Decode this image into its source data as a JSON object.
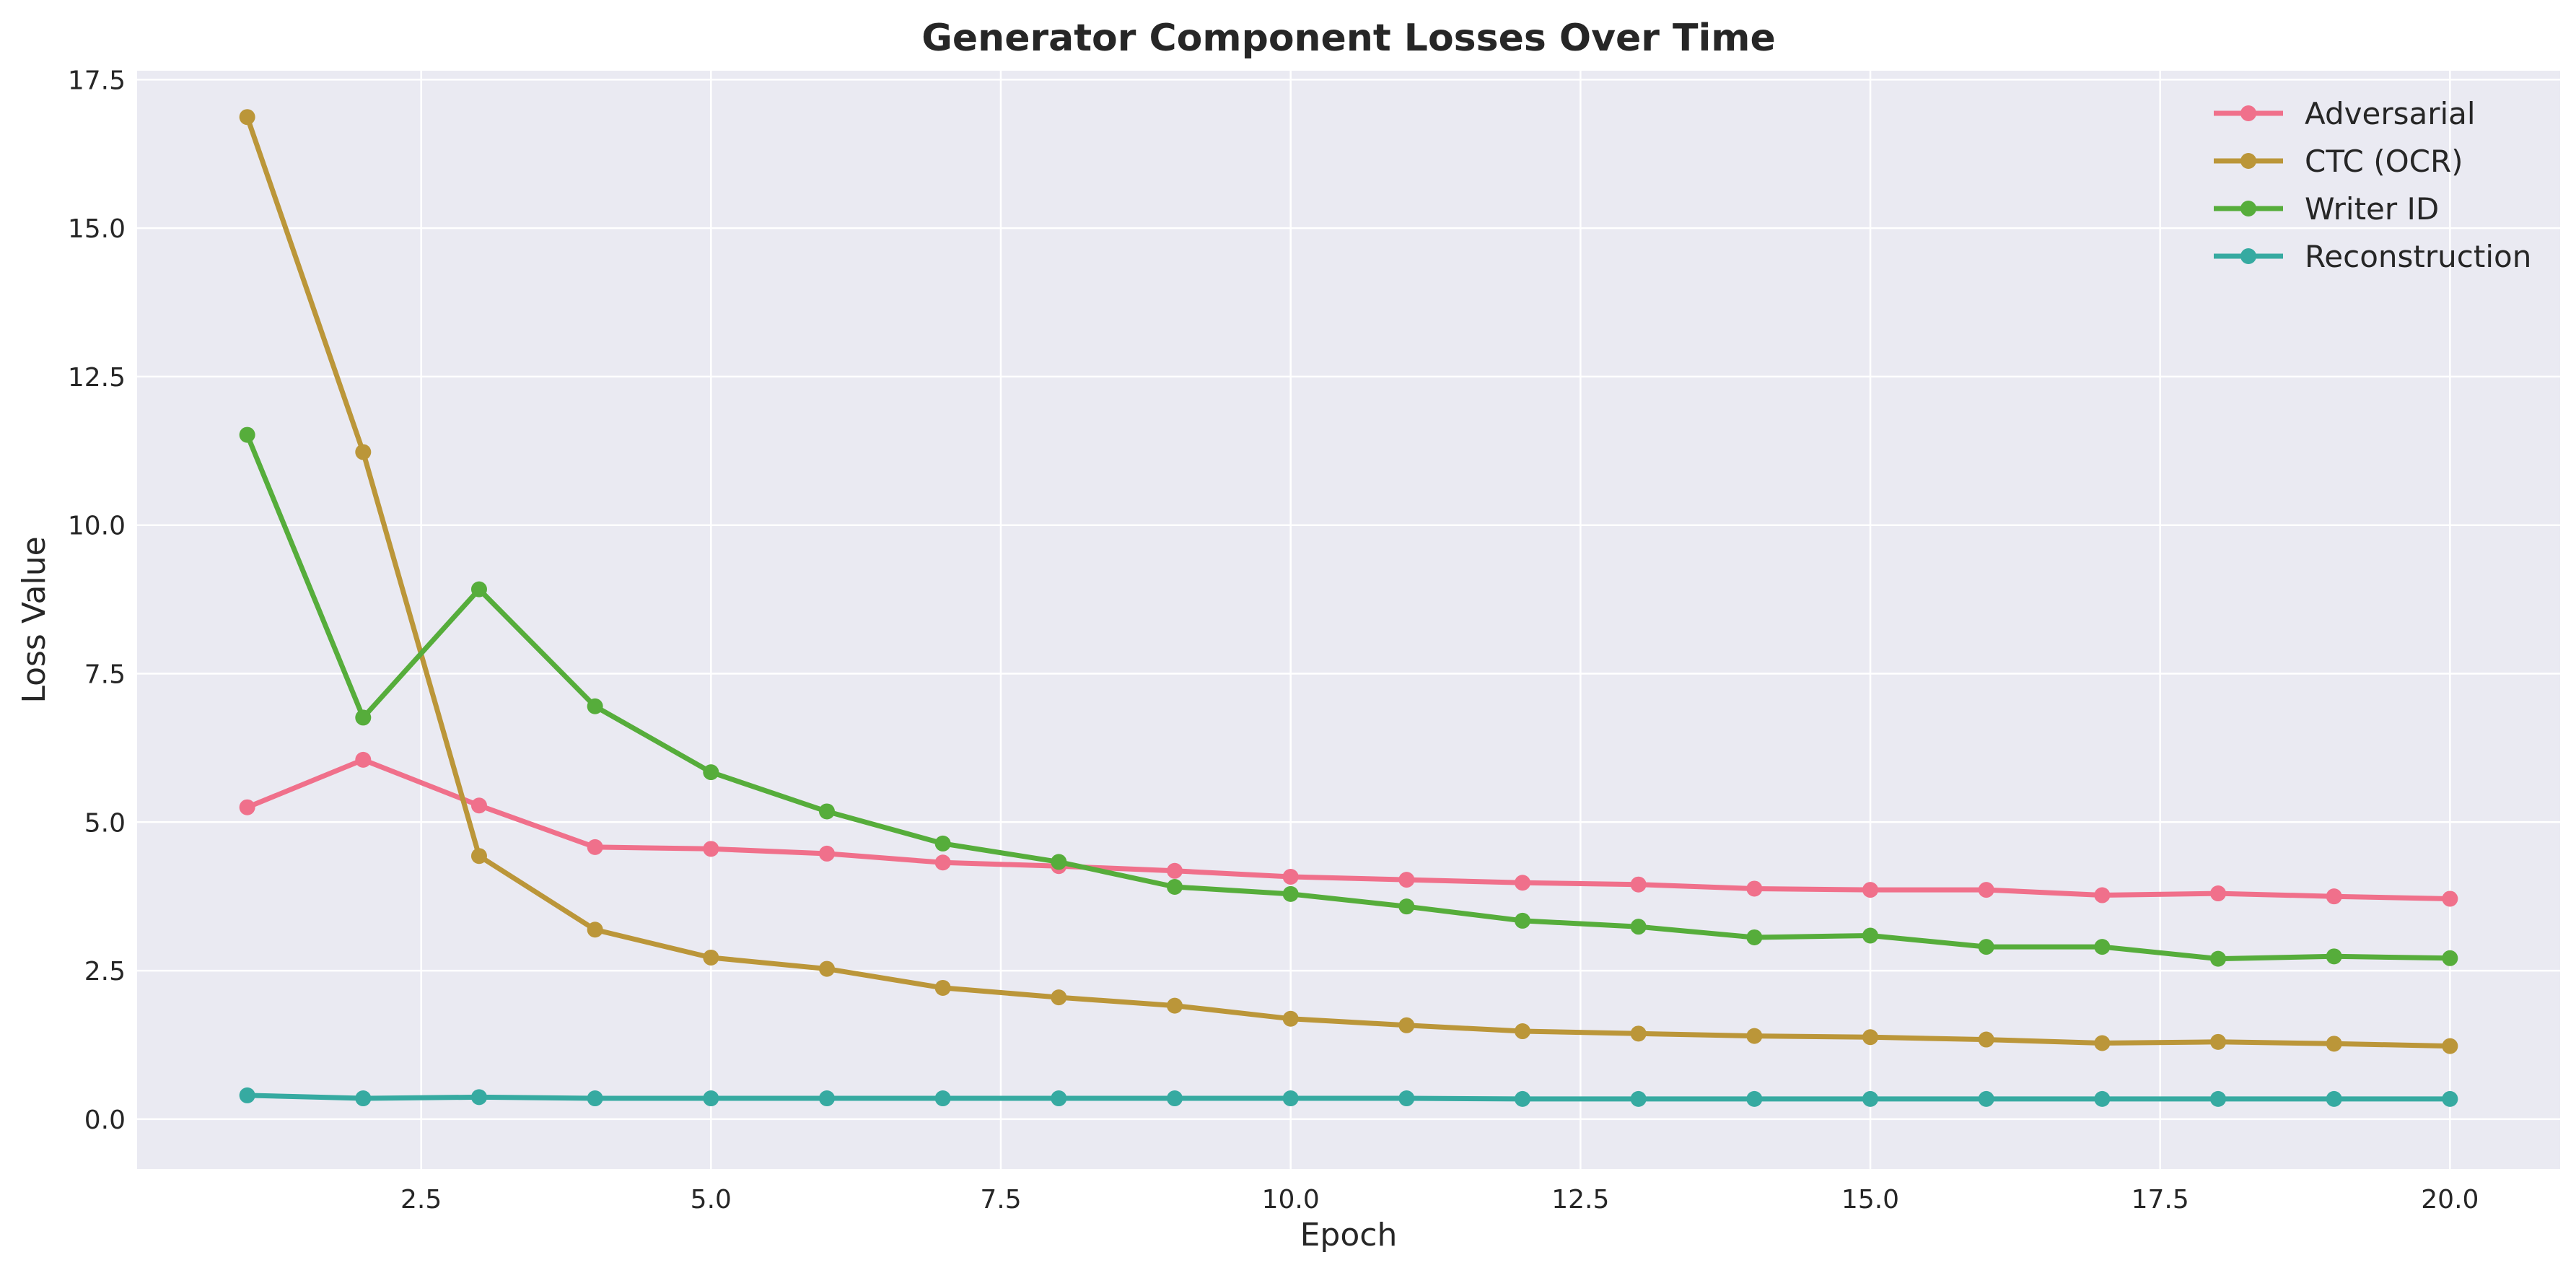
{
  "chart_data": {
    "type": "line",
    "title": "Generator Component Losses Over Time",
    "xlabel": "Epoch",
    "ylabel": "Loss Value",
    "xlim": [
      0.05,
      20.95
    ],
    "ylim": [
      -0.84,
      17.65
    ],
    "xticks": [
      2.5,
      5.0,
      7.5,
      10.0,
      12.5,
      15.0,
      17.5,
      20.0
    ],
    "xtick_labels": [
      "2.5",
      "5.0",
      "7.5",
      "10.0",
      "12.5",
      "15.0",
      "17.5",
      "20.0"
    ],
    "yticks": [
      0.0,
      2.5,
      5.0,
      7.5,
      10.0,
      12.5,
      15.0,
      17.5
    ],
    "ytick_labels": [
      "0.0",
      "2.5",
      "5.0",
      "7.5",
      "10.0",
      "12.5",
      "15.0",
      "17.5"
    ],
    "grid": true,
    "legend_position": "top-right",
    "x": [
      1,
      2,
      3,
      4,
      5,
      6,
      7,
      8,
      9,
      10,
      11,
      12,
      13,
      14,
      15,
      16,
      17,
      18,
      19,
      20
    ],
    "series": [
      {
        "name": "Adversarial",
        "color": "#f0708b",
        "values": [
          5.25,
          6.05,
          5.28,
          4.58,
          4.55,
          4.47,
          4.32,
          4.26,
          4.18,
          4.08,
          4.03,
          3.98,
          3.95,
          3.88,
          3.86,
          3.86,
          3.77,
          3.8,
          3.75,
          3.71
        ]
      },
      {
        "name": "CTC (OCR)",
        "color": "#bb9639",
        "values": [
          16.87,
          11.23,
          4.43,
          3.19,
          2.72,
          2.53,
          2.21,
          2.05,
          1.91,
          1.69,
          1.58,
          1.48,
          1.44,
          1.4,
          1.38,
          1.34,
          1.28,
          1.3,
          1.27,
          1.23
        ]
      },
      {
        "name": "Writer ID",
        "color": "#56ad3b",
        "values": [
          11.52,
          6.76,
          8.92,
          6.95,
          5.84,
          5.18,
          4.64,
          4.33,
          3.91,
          3.79,
          3.58,
          3.34,
          3.24,
          3.06,
          3.09,
          2.9,
          2.9,
          2.7,
          2.74,
          2.71
        ]
      },
      {
        "name": "Reconstruction",
        "color": "#36aaa1",
        "values": [
          0.4,
          0.35,
          0.37,
          0.35,
          0.35,
          0.35,
          0.35,
          0.35,
          0.35,
          0.35,
          0.35,
          0.34,
          0.34,
          0.34,
          0.34,
          0.34,
          0.34,
          0.34,
          0.34,
          0.34
        ]
      }
    ],
    "colors": {
      "plot_background": "#eaeaf2",
      "grid": "#ffffff",
      "text": "#262626"
    }
  }
}
